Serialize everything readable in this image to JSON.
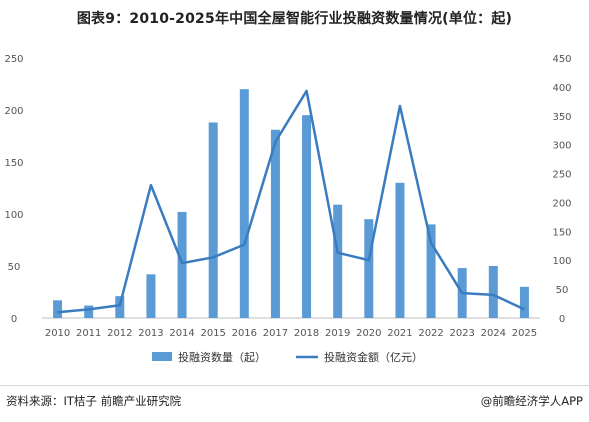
{
  "title": "图表9：2010-2025年中国全屋智能行业投融资数量情况(单位：起)",
  "source": "资料来源：IT桔子 前瞻产业研究院",
  "credit": "@前瞻经济学人APP",
  "colors": {
    "bar": "#5b9bd5",
    "line": "#3a7cc1",
    "axis": "#bfbfbf"
  },
  "chart_data": {
    "type": "bar",
    "categories": [
      "2010",
      "2011",
      "2012",
      "2013",
      "2014",
      "2015",
      "2016",
      "2017",
      "2018",
      "2019",
      "2020",
      "2021",
      "2022",
      "2023",
      "2024",
      "2025"
    ],
    "series": [
      {
        "name": "投融资数量（起）",
        "type": "bar",
        "axis": "left",
        "values": [
          17,
          12,
          21,
          42,
          102,
          188,
          220,
          181,
          195,
          109,
          95,
          130,
          90,
          48,
          50,
          30
        ]
      },
      {
        "name": "投融资金额（亿元）",
        "type": "line",
        "axis": "right",
        "values": [
          10,
          15,
          22,
          230,
          95,
          105,
          127,
          305,
          393,
          113,
          100,
          367,
          130,
          43,
          40,
          15
        ]
      }
    ],
    "ylim_left": [
      0,
      250
    ],
    "yticks_left": [
      0,
      50,
      100,
      150,
      200,
      250
    ],
    "ylim_right": [
      0,
      450
    ],
    "yticks_right": [
      0,
      50,
      100,
      150,
      200,
      250,
      300,
      350,
      400,
      450
    ],
    "xlabel": "",
    "ylabel": "",
    "grid": false,
    "legend": "bottom"
  }
}
